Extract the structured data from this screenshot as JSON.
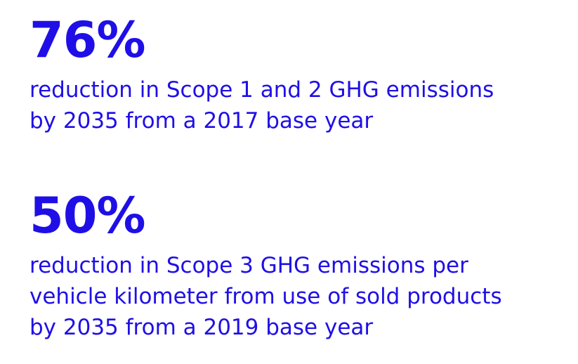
{
  "accent_color": "#1f0fe6",
  "stats": [
    {
      "value": "76%",
      "description_lines": [
        "reduction in Scope 1 and 2 GHG emissions",
        "by 2035 from a 2017 base year"
      ]
    },
    {
      "value": "50%",
      "description_lines": [
        "reduction in Scope 3 GHG emissions per",
        "vehicle kilometer from use of sold products",
        "by 2035 from a 2019 base year"
      ]
    }
  ]
}
